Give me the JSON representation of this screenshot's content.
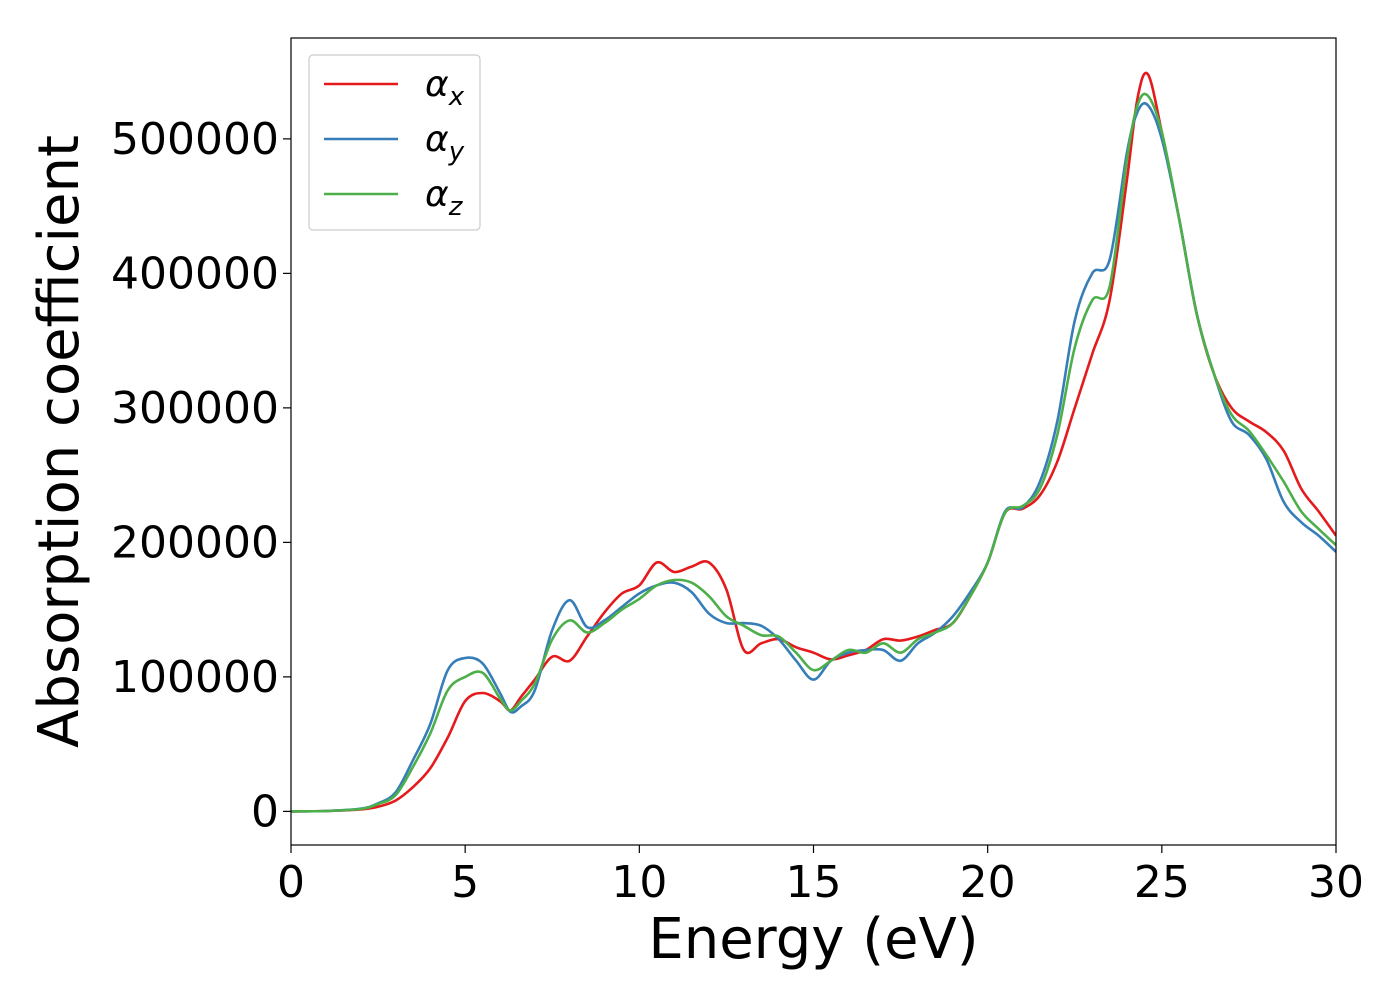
{
  "chart_data": {
    "type": "line",
    "xlabel": "Energy (eV)",
    "ylabel": "Absorption coefficient",
    "xlim": [
      0,
      30
    ],
    "ylim": [
      -25000,
      575000
    ],
    "xticks": [
      0,
      5,
      10,
      15,
      20,
      25,
      30
    ],
    "yticks": [
      0,
      100000,
      200000,
      300000,
      400000,
      500000
    ],
    "grid": false,
    "legend_position": "top-left",
    "series": [
      {
        "name": "α",
        "subscript": "x",
        "color": "#e41a1c",
        "x": [
          0,
          1,
          2,
          2.5,
          3,
          3.5,
          4,
          4.5,
          5,
          5.5,
          6,
          6.3,
          6.6,
          7,
          7.5,
          8,
          8.5,
          9,
          9.5,
          10,
          10.5,
          11,
          11.5,
          12,
          12.5,
          13,
          13.5,
          14,
          14.5,
          15,
          15.5,
          16,
          16.5,
          17,
          17.5,
          18,
          18.5,
          19,
          19.5,
          20,
          20.5,
          21,
          21.5,
          22,
          22.5,
          23,
          23.5,
          24,
          24.3,
          24.6,
          25,
          25.5,
          26,
          26.5,
          27,
          27.5,
          28,
          28.5,
          29,
          29.5,
          30
        ],
        "y": [
          0,
          300,
          1500,
          3500,
          8000,
          18000,
          32000,
          55000,
          82000,
          88000,
          82000,
          75000,
          85000,
          98000,
          115000,
          112000,
          130000,
          148000,
          162000,
          168000,
          185000,
          178000,
          182000,
          185000,
          165000,
          120000,
          125000,
          128000,
          122000,
          118000,
          113000,
          116000,
          120000,
          128000,
          127000,
          130000,
          135000,
          140000,
          160000,
          185000,
          222000,
          225000,
          235000,
          260000,
          300000,
          340000,
          380000,
          470000,
          530000,
          548000,
          505000,
          440000,
          370000,
          325000,
          300000,
          290000,
          282000,
          268000,
          240000,
          223000,
          205000
        ]
      },
      {
        "name": "α",
        "subscript": "y",
        "color": "#377eb8",
        "x": [
          0,
          1,
          2,
          2.5,
          3,
          3.5,
          4,
          4.5,
          5,
          5.5,
          6,
          6.3,
          6.6,
          7,
          7.5,
          8,
          8.5,
          9,
          9.5,
          10,
          10.5,
          11,
          11.5,
          12,
          12.5,
          13,
          13.5,
          14,
          14.5,
          15,
          15.5,
          16,
          16.5,
          17,
          17.5,
          18,
          18.5,
          19,
          19.5,
          20,
          20.5,
          21,
          21.5,
          22,
          22.5,
          23,
          23.5,
          24,
          24.3,
          24.6,
          25,
          25.5,
          26,
          26.5,
          27,
          27.5,
          28,
          28.5,
          29,
          29.5,
          30
        ],
        "y": [
          0,
          300,
          2000,
          6000,
          14000,
          38000,
          65000,
          105000,
          114000,
          110000,
          88000,
          74000,
          78000,
          90000,
          135000,
          157000,
          137000,
          142000,
          152000,
          162000,
          168000,
          170000,
          163000,
          147000,
          140000,
          140000,
          138000,
          128000,
          112000,
          98000,
          112000,
          118000,
          120000,
          120000,
          112000,
          125000,
          133000,
          145000,
          163000,
          185000,
          223000,
          226000,
          245000,
          290000,
          365000,
          400000,
          410000,
          490000,
          520000,
          525000,
          500000,
          440000,
          370000,
          325000,
          290000,
          280000,
          262000,
          230000,
          215000,
          205000,
          193000
        ]
      },
      {
        "name": "α",
        "subscript": "z",
        "color": "#4daf4a",
        "x": [
          0,
          1,
          2,
          2.5,
          3,
          3.5,
          4,
          4.5,
          5,
          5.5,
          6,
          6.3,
          6.6,
          7,
          7.5,
          8,
          8.5,
          9,
          9.5,
          10,
          10.5,
          11,
          11.5,
          12,
          12.5,
          13,
          13.5,
          14,
          14.5,
          15,
          15.5,
          16,
          16.5,
          17,
          17.5,
          18,
          18.5,
          19,
          19.5,
          20,
          20.5,
          21,
          21.5,
          22,
          22.5,
          23,
          23.5,
          24,
          24.3,
          24.6,
          25,
          25.5,
          26,
          26.5,
          27,
          27.5,
          28,
          28.5,
          29,
          29.5,
          30
        ],
        "y": [
          0,
          300,
          1800,
          5500,
          12000,
          33000,
          58000,
          90000,
          100000,
          103000,
          84000,
          75000,
          82000,
          95000,
          128000,
          142000,
          133000,
          140000,
          150000,
          158000,
          168000,
          172000,
          170000,
          160000,
          145000,
          138000,
          131000,
          130000,
          118000,
          105000,
          112000,
          120000,
          118000,
          125000,
          118000,
          128000,
          133000,
          140000,
          160000,
          185000,
          222000,
          227000,
          240000,
          280000,
          345000,
          380000,
          390000,
          485000,
          525000,
          532000,
          505000,
          440000,
          370000,
          325000,
          295000,
          283000,
          265000,
          245000,
          223000,
          210000,
          198000
        ]
      }
    ]
  }
}
